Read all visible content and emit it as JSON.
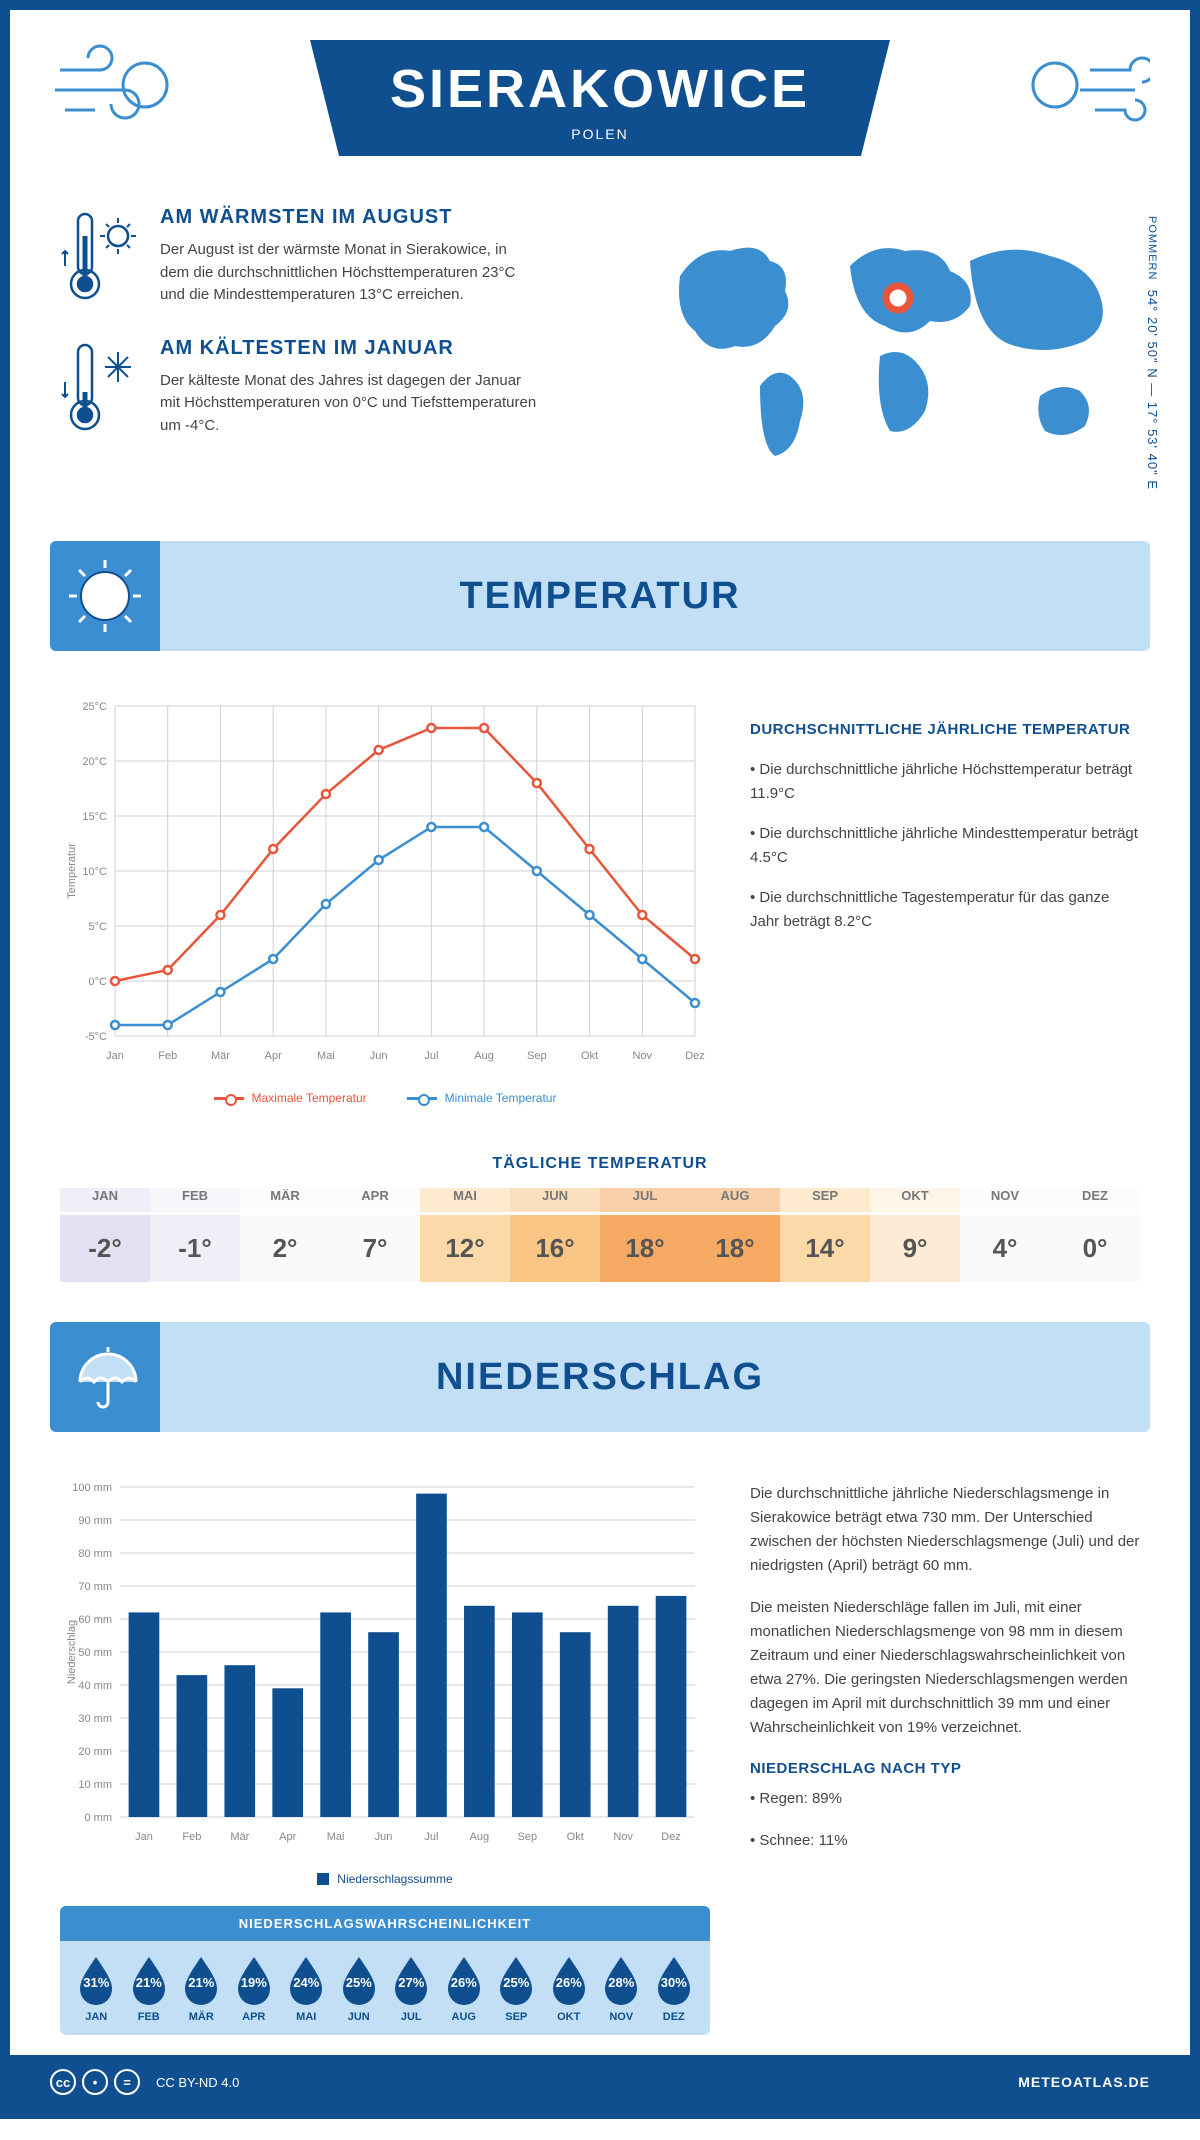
{
  "header": {
    "city": "SIERAKOWICE",
    "country": "POLEN",
    "coordinates": "54° 20' 50\" N — 17° 53' 40\" E",
    "region": "POMMERN"
  },
  "facts": {
    "warm": {
      "title": "AM WÄRMSTEN IM AUGUST",
      "text": "Der August ist der wärmste Monat in Sierakowice, in dem die durchschnittlichen Höchsttemperaturen 23°C und die Mindesttemperaturen 13°C erreichen."
    },
    "cold": {
      "title": "AM KÄLTESTEN IM JANUAR",
      "text": "Der kälteste Monat des Jahres ist dagegen der Januar mit Höchsttemperaturen von 0°C und Tiefsttemperaturen um -4°C."
    }
  },
  "temperature_section": {
    "title": "TEMPERATUR",
    "chart": {
      "type": "line",
      "months": [
        "Jan",
        "Feb",
        "Mär",
        "Apr",
        "Mai",
        "Jun",
        "Jul",
        "Aug",
        "Sep",
        "Okt",
        "Nov",
        "Dez"
      ],
      "max_series": [
        0,
        1,
        6,
        12,
        17,
        21,
        23,
        23,
        18,
        12,
        6,
        2
      ],
      "min_series": [
        -4,
        -4,
        -1,
        2,
        7,
        11,
        14,
        14,
        10,
        6,
        2,
        -2
      ],
      "max_color": "#e8553b",
      "min_color": "#3b8ed0",
      "ylim": [
        -5,
        25
      ],
      "ytick_step": 5,
      "y_unit": "°C",
      "grid_color": "#d0d0d0",
      "y_title": "Temperatur",
      "legend_max": "Maximale Temperatur",
      "legend_min": "Minimale Temperatur"
    },
    "info": {
      "heading": "DURCHSCHNITTLICHE JÄHRLICHE TEMPERATUR",
      "bullets": [
        "• Die durchschnittliche jährliche Höchsttemperatur beträgt 11.9°C",
        "• Die durchschnittliche jährliche Mindesttemperatur beträgt 4.5°C",
        "• Die durchschnittliche Tagestemperatur für das ganze Jahr beträgt 8.2°C"
      ]
    },
    "daily_title": "TÄGLICHE TEMPERATUR",
    "daily_table": {
      "months": [
        "JAN",
        "FEB",
        "MÄR",
        "APR",
        "MAI",
        "JUN",
        "JUL",
        "AUG",
        "SEP",
        "OKT",
        "NOV",
        "DEZ"
      ],
      "values": [
        "-2°",
        "-1°",
        "2°",
        "7°",
        "12°",
        "16°",
        "18°",
        "18°",
        "14°",
        "9°",
        "4°",
        "0°"
      ],
      "bg_colors": [
        "#e4e0f2",
        "#efeff7",
        "#fafafa",
        "#fafafa",
        "#fbd9a8",
        "#fac686",
        "#f5a963",
        "#f5a963",
        "#fbd9a8",
        "#fdecd5",
        "#fafafa",
        "#fafafa"
      ],
      "month_bg_opacity": 0.55
    }
  },
  "precip_section": {
    "title": "NIEDERSCHLAG",
    "chart": {
      "type": "bar",
      "months": [
        "Jan",
        "Feb",
        "Mär",
        "Apr",
        "Mai",
        "Jun",
        "Jul",
        "Aug",
        "Sep",
        "Okt",
        "Nov",
        "Dez"
      ],
      "values": [
        62,
        43,
        46,
        39,
        62,
        56,
        98,
        64,
        62,
        56,
        64,
        67
      ],
      "bar_color": "#0f4f8f",
      "ylim": [
        0,
        100
      ],
      "ytick_step": 10,
      "y_unit": " mm",
      "grid_color": "#d0d0d0",
      "y_title": "Niederschlag",
      "legend": "Niederschlagssumme"
    },
    "info": {
      "p1": "Die durchschnittliche jährliche Niederschlagsmenge in Sierakowice beträgt etwa 730 mm. Der Unterschied zwischen der höchsten Niederschlagsmenge (Juli) und der niedrigsten (April) beträgt 60 mm.",
      "p2": "Die meisten Niederschläge fallen im Juli, mit einer monatlichen Niederschlagsmenge von 98 mm in diesem Zeitraum und einer Niederschlagswahrscheinlichkeit von etwa 27%. Die geringsten Niederschlagsmengen werden dagegen im April mit durchschnittlich 39 mm und einer Wahrscheinlichkeit von 19% verzeichnet.",
      "type_heading": "NIEDERSCHLAG NACH TYP",
      "type_bullets": [
        "• Regen: 89%",
        "• Schnee: 11%"
      ]
    },
    "probability": {
      "title": "NIEDERSCHLAGSWAHRSCHEINLICHKEIT",
      "months": [
        "JAN",
        "FEB",
        "MÄR",
        "APR",
        "MAI",
        "JUN",
        "JUL",
        "AUG",
        "SEP",
        "OKT",
        "NOV",
        "DEZ"
      ],
      "values": [
        "31%",
        "21%",
        "21%",
        "19%",
        "24%",
        "25%",
        "27%",
        "26%",
        "25%",
        "26%",
        "28%",
        "30%"
      ],
      "drop_color": "#0f4f8f"
    }
  },
  "footer": {
    "license": "CC BY-ND 4.0",
    "site": "METEOATLAS.DE"
  },
  "colors": {
    "primary": "#0f4f8f",
    "light_blue": "#c2dff5",
    "mid_blue": "#3b8ed0"
  }
}
